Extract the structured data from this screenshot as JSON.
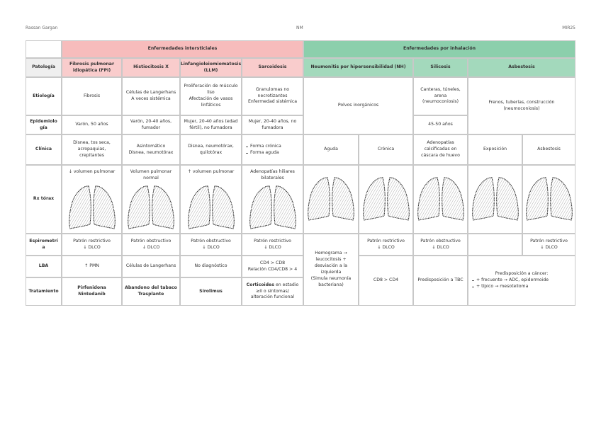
{
  "header": {
    "left": "Rassan Gargan",
    "center": "NM",
    "right": "MIR25"
  },
  "table": {
    "groups": [
      "Enfermedades intersticiales",
      "Enfermedades por inhalación"
    ],
    "corner": "Patología",
    "columns": [
      [
        "Fibrosis pulmonar",
        "idiopática (FPI)"
      ],
      [
        "Histiocitosis X"
      ],
      [
        "Linfangioleiomiomatosis",
        "(LLM)"
      ],
      [
        "Sarcoidosis"
      ],
      [
        "Neumonitis por hipersensibilidad (NH)"
      ],
      [
        "Silicosis"
      ],
      [
        "Asbestosis"
      ]
    ],
    "rows": [
      {
        "label": "Etiología",
        "cells": [
          {
            "lines": [
              "Fibrosis"
            ]
          },
          {
            "lines": [
              "Células de Langerhans",
              "A veces sistémica"
            ]
          },
          {
            "lines": [
              "Proliferación de músculo",
              "liso",
              "Afectación de vasos",
              "linfáticos"
            ]
          },
          {
            "lines": [
              "Granulomas no",
              "necrotizantes",
              "Enfermedad sistémica"
            ]
          },
          {
            "lines": [
              "Polvos inorgánicos"
            ]
          },
          {
            "lines": [
              "Canteras, túneles,",
              "arena",
              "(neumoconiosis)"
            ]
          },
          {
            "lines": [
              "Frenos, tuberías, construcción",
              "(neumoconiosis)"
            ]
          }
        ]
      },
      {
        "label": "Epidemiología",
        "cells": [
          {
            "lines": [
              "Varón, 50 años"
            ]
          },
          {
            "lines": [
              "Varón, 20-40 años,",
              "fumador"
            ]
          },
          {
            "lines": [
              "Mujer, 20-40 años (edad",
              "fértil), no fumadora"
            ]
          },
          {
            "lines": [
              "Mujer, 20-40 años, no",
              "fumadora"
            ]
          },
          {
            "lines": [
              "45-50 años"
            ]
          }
        ]
      },
      {
        "label": "Clínica",
        "cells": [
          {
            "lines": [
              "Disnea, tos seca,",
              "acropaquias,",
              "crepitantes"
            ]
          },
          {
            "lines": [
              "Asintomático",
              "Disnea, neumotórax"
            ]
          },
          {
            "lines": [
              "Disnea, neumotórax,",
              "quilotórax"
            ]
          },
          {
            "list": [
              "Forma crónica",
              "Forma aguda"
            ]
          },
          {
            "lines": [
              "Aguda"
            ]
          },
          {
            "lines": [
              "Crónica"
            ]
          },
          {
            "lines": [
              "Adenopatías",
              "calcificadas en",
              "cáscara de huevo"
            ]
          },
          {
            "lines": [
              "Exposición"
            ]
          },
          {
            "lines": [
              "Asbestosis"
            ]
          }
        ]
      },
      {
        "label": "Rx tórax",
        "cells": [
          {
            "lines": [
              "↓ volumen pulmonar"
            ]
          },
          {
            "lines": [
              "Volumen pulmonar",
              "normal"
            ]
          },
          {
            "lines": [
              "↑ volumen pulmonar"
            ]
          },
          {
            "lines": [
              "Adenopatías hiliares",
              "bilaterales"
            ]
          }
        ]
      },
      {
        "label": "Espirometría",
        "cells": [
          {
            "lines": [
              "Patrón restrictivo",
              "↓ DLCO"
            ]
          },
          {
            "lines": [
              "Patrón obstructivo",
              "↓ DLCO"
            ]
          },
          {
            "lines": [
              "Patrón obstructivo",
              "↓ DLCO"
            ]
          },
          {
            "lines": [
              "Patrón restrictivo",
              "↓ DLCO"
            ]
          },
          {
            "lines": [
              "Hemograma →",
              "leucocitosis +",
              "desviación a la",
              "izquierda",
              "(Simula neumonía",
              "bacteriana)"
            ]
          },
          {
            "lines": [
              "Patrón restrictivo",
              "↓ DLCO"
            ]
          },
          {
            "lines": [
              "Patrón obstructivo",
              "↓ DLCO"
            ]
          },
          {
            "lines": [
              "Patrón restrictivo",
              "↓ DLCO"
            ]
          }
        ]
      },
      {
        "label": "LBA",
        "cells": [
          {
            "lines": [
              "↑ PMN"
            ]
          },
          {
            "lines": [
              "Células de Langerhans"
            ]
          },
          {
            "lines": [
              "No diagnóstico"
            ]
          },
          {
            "lines": [
              "CD4 > CD8",
              "Relación CD4/CD8 > 4"
            ]
          },
          {
            "lines": [
              "CD8 > CD4"
            ]
          },
          {
            "lines": [
              "Predisposición a TBC"
            ]
          },
          {
            "intro": "Predisposición a cáncer:",
            "list": [
              "+ frecuente → ADC, epidermoide",
              "+ típico → mesotelioma"
            ]
          }
        ]
      },
      {
        "label": "Tratamiento",
        "cells": [
          {
            "bold": true,
            "lines": [
              "Pirfenidona",
              "Nintedanib"
            ]
          },
          {
            "bold": true,
            "lines": [
              "Abandono del tabaco",
              "Trasplante"
            ]
          },
          {
            "bold": true,
            "lines": [
              "Sirolimus"
            ]
          },
          {
            "lead": "Corticoides",
            "lines": [
              "en estadio",
              "≥II o síntomas/",
              "alteración funcional"
            ]
          }
        ]
      }
    ]
  }
}
